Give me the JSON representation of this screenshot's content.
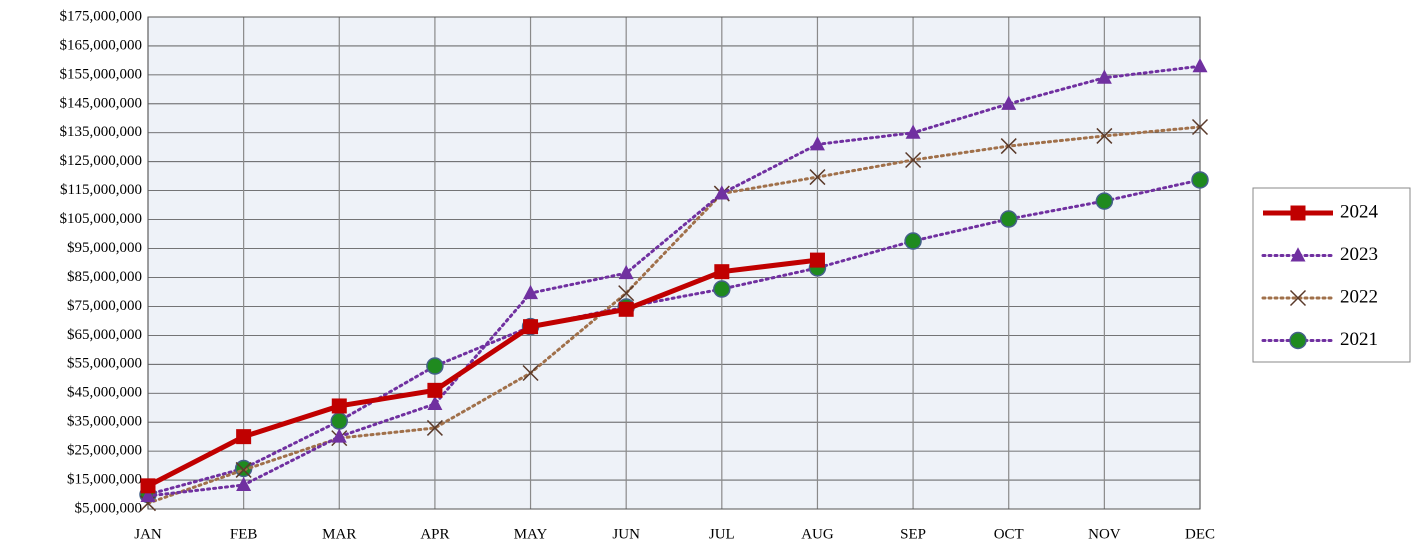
{
  "chart_data": {
    "type": "line",
    "categories": [
      "JAN",
      "FEB",
      "MAR",
      "APR",
      "MAY",
      "JUN",
      "JUL",
      "AUG",
      "SEP",
      "OCT",
      "NOV",
      "DEC"
    ],
    "series": [
      {
        "name": "2024",
        "color": "#c00000",
        "line_style": "solid",
        "marker": "square",
        "marker_color": "#c00000",
        "values": [
          13000000,
          30000000,
          40600000,
          46000000,
          68000000,
          74000000,
          87000000,
          91000000,
          null,
          null,
          null,
          null
        ]
      },
      {
        "name": "2023",
        "color": "#7030a0",
        "line_style": "dotted",
        "marker": "triangle",
        "marker_color": "#7030a0",
        "values": [
          9500000,
          13300000,
          30000000,
          41300000,
          79600000,
          86500000,
          114000000,
          131000000,
          135000000,
          145000000,
          154000000,
          158000000
        ]
      },
      {
        "name": "2022",
        "color": "#a0704a",
        "line_style": "dotted",
        "marker": "x",
        "marker_color": "#5a3a2a",
        "values": [
          7000000,
          18500000,
          29500000,
          33000000,
          52000000,
          79600000,
          114000000,
          119700000,
          125600000,
          130400000,
          133900000,
          137000000
        ]
      },
      {
        "name": "2021",
        "color": "#7030a0",
        "line_style": "dotted",
        "marker": "circle",
        "marker_color": "#1f8a1f",
        "values": [
          10000000,
          19000000,
          35400000,
          54400000,
          68000000,
          74800000,
          81000000,
          88300000,
          97600000,
          105200000,
          111400000,
          118700000
        ]
      }
    ],
    "ylim": [
      5000000,
      175000000
    ],
    "yticks": [
      {
        "value": 5000000,
        "label": "$5,000,000"
      },
      {
        "value": 15000000,
        "label": "$15,000,000"
      },
      {
        "value": 25000000,
        "label": "$25,000,000"
      },
      {
        "value": 35000000,
        "label": "$35,000,000"
      },
      {
        "value": 45000000,
        "label": "$45,000,000"
      },
      {
        "value": 55000000,
        "label": "$55,000,000"
      },
      {
        "value": 65000000,
        "label": "$65,000,000"
      },
      {
        "value": 75000000,
        "label": "$75,000,000"
      },
      {
        "value": 85000000,
        "label": "$85,000,000"
      },
      {
        "value": 95000000,
        "label": "$95,000,000"
      },
      {
        "value": 105000000,
        "label": "$105,000,000"
      },
      {
        "value": 115000000,
        "label": "$115,000,000"
      },
      {
        "value": 125000000,
        "label": "$125,000,000"
      },
      {
        "value": 135000000,
        "label": "$135,000,000"
      },
      {
        "value": 145000000,
        "label": "$145,000,000"
      },
      {
        "value": 155000000,
        "label": "$155,000,000"
      },
      {
        "value": 165000000,
        "label": "$165,000,000"
      },
      {
        "value": 175000000,
        "label": "$175,000,000"
      }
    ],
    "grid": true,
    "legend": "right"
  }
}
